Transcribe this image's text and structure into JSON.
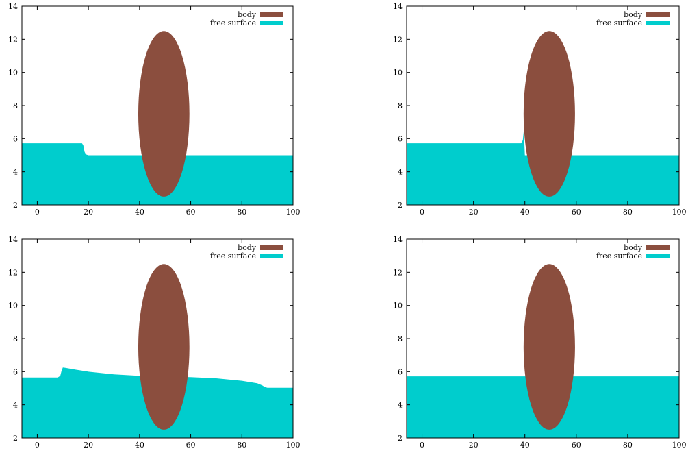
{
  "chart_data": [
    {
      "type": "area",
      "title": "",
      "xlabel": "",
      "ylabel": "",
      "xlim": [
        -6,
        100
      ],
      "ylim": [
        2,
        14
      ],
      "xticks": [
        0,
        20,
        40,
        60,
        80,
        100
      ],
      "yticks": [
        2,
        4,
        6,
        8,
        10,
        12,
        14
      ],
      "legend_position": "top-right",
      "series": [
        {
          "name": "body",
          "kind": "ellipse",
          "color": "#8b4e3e",
          "center": [
            49.5,
            7.5
          ],
          "semi_axes": [
            10,
            5
          ]
        },
        {
          "name": "free surface",
          "kind": "area",
          "color": "#00cdcd",
          "x": [
            -6,
            17.5,
            18,
            18.5,
            19,
            20,
            100
          ],
          "y": [
            5.72,
            5.72,
            5.6,
            5.2,
            5.05,
            5.0,
            5.0
          ]
        }
      ]
    },
    {
      "type": "area",
      "title": "",
      "xlabel": "",
      "ylabel": "",
      "xlim": [
        -6,
        100
      ],
      "ylim": [
        2,
        14
      ],
      "xticks": [
        0,
        20,
        40,
        60,
        80,
        100
      ],
      "yticks": [
        2,
        4,
        6,
        8,
        10,
        12,
        14
      ],
      "legend_position": "top-right",
      "series": [
        {
          "name": "body",
          "kind": "ellipse",
          "color": "#8b4e3e",
          "center": [
            49.5,
            7.5
          ],
          "semi_axes": [
            10,
            5
          ]
        },
        {
          "name": "free surface",
          "kind": "area",
          "color": "#00cdcd",
          "x": [
            -6,
            38.5,
            39.2,
            39.6,
            40,
            100
          ],
          "y": [
            5.72,
            5.72,
            5.9,
            6.5,
            5.0,
            5.0
          ]
        }
      ]
    },
    {
      "type": "area",
      "title": "",
      "xlabel": "",
      "ylabel": "",
      "xlim": [
        -6,
        100
      ],
      "ylim": [
        2,
        14
      ],
      "xticks": [
        0,
        20,
        40,
        60,
        80,
        100
      ],
      "yticks": [
        2,
        4,
        6,
        8,
        10,
        12,
        14
      ],
      "legend_position": "top-right",
      "series": [
        {
          "name": "body",
          "kind": "ellipse",
          "color": "#8b4e3e",
          "center": [
            49.5,
            7.5
          ],
          "semi_axes": [
            10,
            5
          ]
        },
        {
          "name": "free surface",
          "kind": "area",
          "color": "#00cdcd",
          "x": [
            -6,
            8,
            9,
            9.5,
            10,
            11,
            15,
            20,
            30,
            40,
            50,
            60,
            70,
            80,
            86,
            88,
            89,
            90,
            100
          ],
          "y": [
            5.65,
            5.65,
            5.75,
            6.05,
            6.25,
            6.23,
            6.12,
            6.0,
            5.84,
            5.75,
            5.7,
            5.67,
            5.6,
            5.45,
            5.3,
            5.17,
            5.07,
            5.03,
            5.03
          ]
        }
      ]
    },
    {
      "type": "area",
      "title": "",
      "xlabel": "",
      "ylabel": "",
      "xlim": [
        -6,
        100
      ],
      "ylim": [
        2,
        14
      ],
      "xticks": [
        0,
        20,
        40,
        60,
        80,
        100
      ],
      "yticks": [
        2,
        4,
        6,
        8,
        10,
        12,
        14
      ],
      "legend_position": "top-right",
      "series": [
        {
          "name": "body",
          "kind": "ellipse",
          "color": "#8b4e3e",
          "center": [
            49.5,
            7.5
          ],
          "semi_axes": [
            10,
            5
          ]
        },
        {
          "name": "free surface",
          "kind": "area",
          "color": "#00cdcd",
          "x": [
            -6,
            100
          ],
          "y": [
            5.72,
            5.72
          ]
        }
      ]
    }
  ]
}
